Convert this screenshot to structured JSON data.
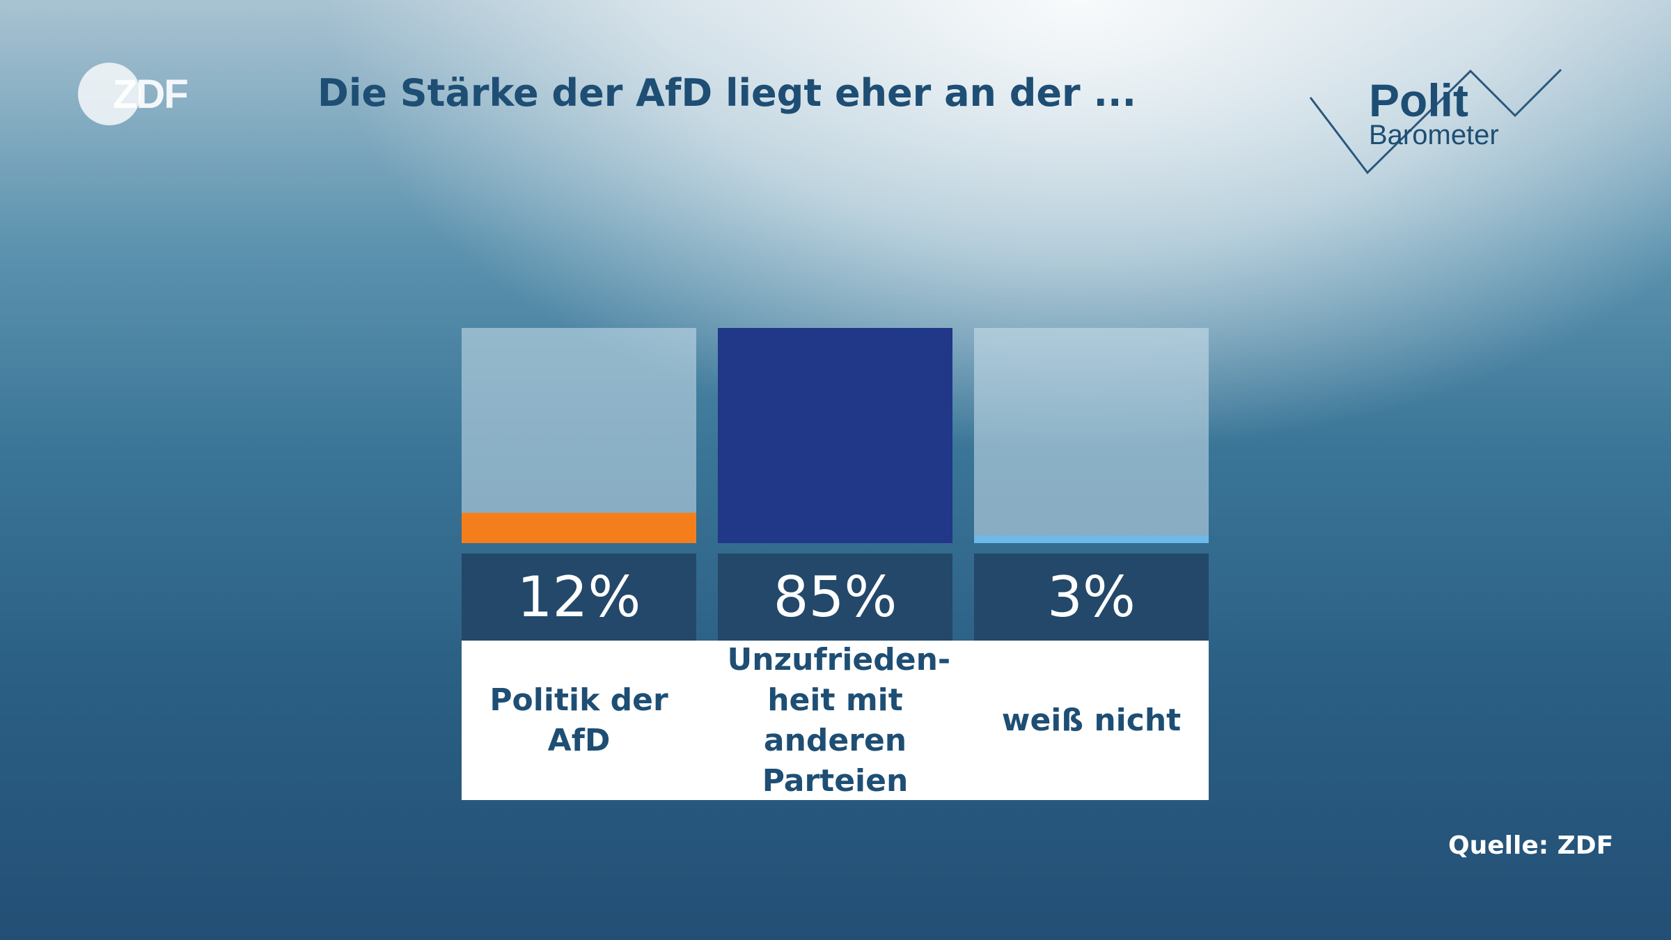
{
  "header": {
    "title": "Die Stärke der AfD liegt eher an der ...",
    "logo_zdf": "ZDF",
    "logo_polit": "Polit",
    "logo_barometer": "Barometer"
  },
  "chart_data": {
    "type": "bar",
    "title": "Die Stärke der AfD liegt eher an der ...",
    "categories": [
      "Politik der AfD",
      "Unzufriedenheit mit anderen Parteien",
      "weiß nicht"
    ],
    "category_labels": [
      "Politik der AfD",
      "Unzufrieden-heit mit anderen Parteien",
      "weiß nicht"
    ],
    "values": [
      12,
      85,
      3
    ],
    "value_labels": [
      "12%",
      "85%",
      "3%"
    ],
    "colors": [
      "#f47e1c",
      "#213788",
      "#6fb8ea"
    ],
    "ylim": [
      0,
      85
    ],
    "grid": false,
    "legend": "none"
  },
  "footer": {
    "source": "Quelle: ZDF"
  }
}
